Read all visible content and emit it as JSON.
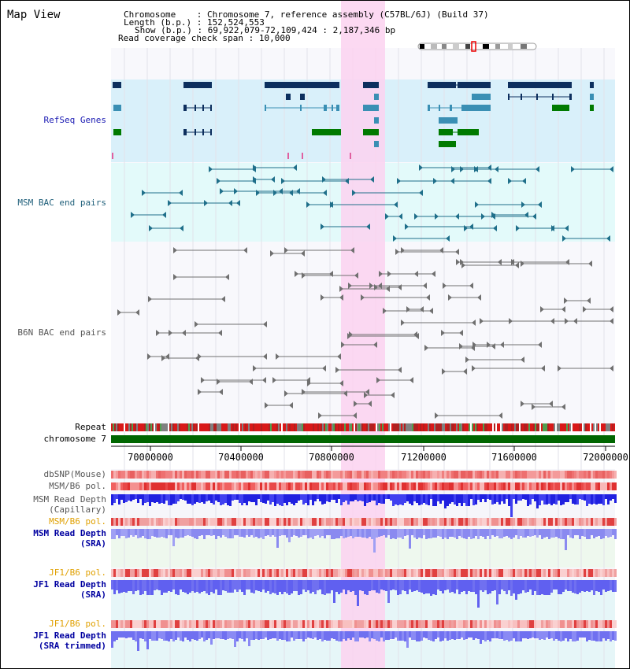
{
  "view_title": "Map View",
  "info": {
    "chromosome_label": "Chromosome",
    "chromosome_value": "Chromosome 7, reference assembly (C57BL/6J) (Build 37)",
    "length_label": "Length (b.p.)",
    "length_value": "152,524,553",
    "show_label": "Show (b.p.)",
    "show_value": "69,922,079-72,109,424 : 2,187,346 bp",
    "coverage_label": "Read coverage check span",
    "coverage_value": "10,000"
  },
  "tracks": {
    "refseq": "RefSeq Genes",
    "msm_bac": "MSM BAC end pairs",
    "b6n_bac": "B6N BAC end pairs",
    "repeat": "Repeat",
    "chromosome": "chromosome 7",
    "dbsnp": "dbSNP(Mouse)",
    "msm_b6_pol": "MSM/B6 pol.",
    "msm_read_depth_cap_1": "MSM Read Depth",
    "msm_read_depth_cap_2": "(Capillary)",
    "msm_b6_pol_sra": "MSM/B6 pol.",
    "msm_read_depth_sra_1": "MSM Read Depth",
    "msm_read_depth_sra_2": "(SRA)",
    "jf1_b6_pol_1": "JF1/B6 pol.",
    "jf1_read_depth_1": "JF1 Read Depth",
    "jf1_read_depth_1b": "(SRA)",
    "jf1_b6_pol_2": "JF1/B6 pol.",
    "jf1_read_depth_2": "JF1 Read Depth",
    "jf1_read_depth_2b": "(SRA trimmed)"
  },
  "axis_ticks": [
    "70000000",
    "70400000",
    "70800000",
    "71200000",
    "71600000",
    "72000000"
  ],
  "colors": {
    "refseq_bg": "#d9f0fa",
    "bac_bg": "#e3fafa",
    "highlight": "#fbd2f0",
    "chromosome_bar": "#006600",
    "refseq_label": "#1a1ab3",
    "msm_label": "#1f5f7a",
    "b6n_label": "#555555",
    "orange_label": "#e0a000",
    "dark_blue_label": "#0000a0",
    "depth_blue": "#2a2ae0",
    "depth_light": "#8080f0"
  }
}
